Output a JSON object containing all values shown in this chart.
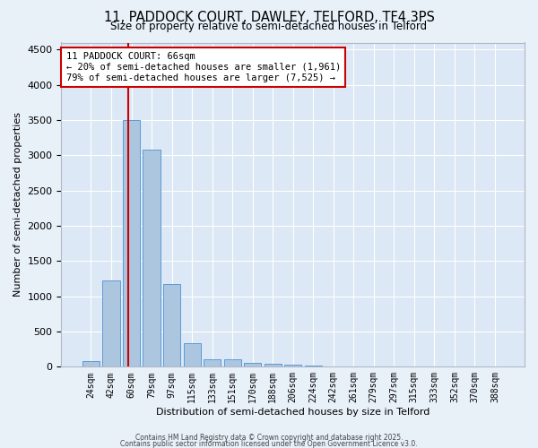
{
  "title": "11, PADDOCK COURT, DAWLEY, TELFORD, TF4 3PS",
  "subtitle": "Size of property relative to semi-detached houses in Telford",
  "xlabel": "Distribution of semi-detached houses by size in Telford",
  "ylabel": "Number of semi-detached properties",
  "bar_labels": [
    "24sqm",
    "42sqm",
    "60sqm",
    "79sqm",
    "97sqm",
    "115sqm",
    "133sqm",
    "151sqm",
    "170sqm",
    "188sqm",
    "206sqm",
    "224sqm",
    "242sqm",
    "261sqm",
    "279sqm",
    "297sqm",
    "315sqm",
    "333sqm",
    "352sqm",
    "370sqm",
    "388sqm"
  ],
  "bar_values": [
    80,
    1230,
    3500,
    3080,
    1170,
    340,
    110,
    100,
    55,
    40,
    30,
    20,
    0,
    0,
    0,
    0,
    0,
    0,
    0,
    0,
    0
  ],
  "bar_color": "#adc6e0",
  "bar_edge_color": "#5b9bd5",
  "background_color": "#dce8f5",
  "fig_background_color": "#e8f0f8",
  "grid_color": "#ffffff",
  "property_size": 66,
  "annotation_title": "11 PADDOCK COURT: 66sqm",
  "annotation_line2": "← 20% of semi-detached houses are smaller (1,961)",
  "annotation_line3": "79% of semi-detached houses are larger (7,525) →",
  "annotation_box_color": "#ffffff",
  "annotation_box_edge": "#cc0000",
  "red_line_color": "#cc0000",
  "ylim": [
    0,
    4600
  ],
  "yticks": [
    0,
    500,
    1000,
    1500,
    2000,
    2500,
    3000,
    3500,
    4000,
    4500
  ],
  "footer1": "Contains HM Land Registry data © Crown copyright and database right 2025.",
  "footer2": "Contains public sector information licensed under the Open Government Licence v3.0."
}
